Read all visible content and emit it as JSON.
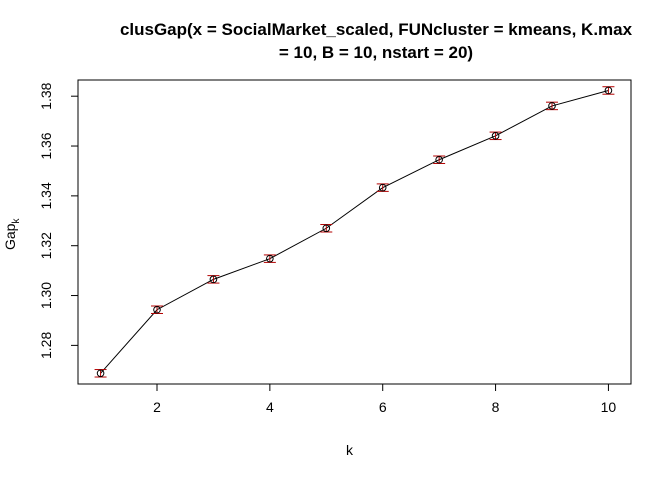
{
  "chart_data": {
    "type": "line",
    "title_line1": "clusGap(x = SocialMarket_scaled, FUNcluster = kmeans, K.max",
    "title_line2": "= 10, B = 10, nstart = 20)",
    "xlabel": "k",
    "ylabel_main": "Gap",
    "ylabel_sub": "k",
    "x": [
      1,
      2,
      3,
      4,
      5,
      6,
      7,
      8,
      9,
      10
    ],
    "values": [
      1.2688,
      1.2943,
      1.3065,
      1.3148,
      1.327,
      1.3433,
      1.3545,
      1.3641,
      1.3761,
      1.3823
    ],
    "se": [
      0.0015,
      0.0015,
      0.0015,
      0.0015,
      0.0015,
      0.0015,
      0.0015,
      0.0015,
      0.0015,
      0.0015
    ],
    "xlim": [
      0.6,
      10.4
    ],
    "ylim": [
      1.2645,
      1.3865
    ],
    "x_ticks": [
      2,
      4,
      6,
      8,
      10
    ],
    "x_tick_labels": [
      "2",
      "4",
      "6",
      "8",
      "10"
    ],
    "y_ticks": [
      1.28,
      1.3,
      1.32,
      1.34,
      1.36,
      1.38
    ],
    "y_tick_labels": [
      "1.28",
      "1.30",
      "1.32",
      "1.34",
      "1.36",
      "1.38"
    ],
    "grid": false,
    "line_color": "#000000",
    "errorbar_color": "#b30000",
    "point_color": "#000000"
  }
}
